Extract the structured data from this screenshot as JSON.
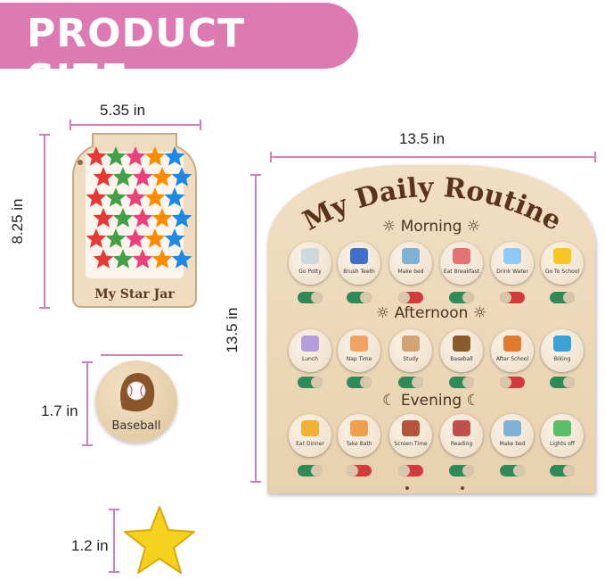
{
  "banner": {
    "title": "PRODUCT SIZE",
    "color": "#de7ab2"
  },
  "dimension_color": "#d77dba",
  "star_jar": {
    "width_label": "5.35 in",
    "height_label": "8.25 in",
    "text": "My Star Jar",
    "star_colors": [
      "#e53935",
      "#fb8c00",
      "#fdd835",
      "#43a047",
      "#1e88e5",
      "#8e24aa",
      "#ec407a",
      "#26c6da"
    ]
  },
  "disc": {
    "height_label": "1.7 in",
    "text": "Baseball"
  },
  "star": {
    "height_label": "1.2 in",
    "color": "#f5d21e"
  },
  "board": {
    "width_label": "13.5 in",
    "height_label": "13.5 in",
    "title": "My Daily Routine",
    "on_color": "#2e8b57",
    "off_color": "#d23b3b",
    "sections": [
      {
        "name": "Morning",
        "icon": "sunrise-icon",
        "items": [
          {
            "label": "Go Potty",
            "icon": "toilet-icon",
            "color": "#cfd8dc",
            "on": true
          },
          {
            "label": "Brush Teeth",
            "icon": "toothbrush-icon",
            "color": "#3f6fc9",
            "on": true
          },
          {
            "label": "Make bed",
            "icon": "bed-icon",
            "color": "#7fb3d5",
            "on": false
          },
          {
            "label": "Eat Breakfast",
            "icon": "toaster-icon",
            "color": "#e57373",
            "on": true
          },
          {
            "label": "Drink Water",
            "icon": "water-bottle-icon",
            "color": "#90caf9",
            "on": false
          },
          {
            "label": "Go To School",
            "icon": "school-bus-icon",
            "color": "#f9c623",
            "on": true
          }
        ]
      },
      {
        "name": "Afternoon",
        "icon": "sun-icon",
        "items": [
          {
            "label": "Lunch",
            "icon": "lunchbox-icon",
            "color": "#b39ddb",
            "on": true
          },
          {
            "label": "Nap Time",
            "icon": "sleeping-child-icon",
            "color": "#f4a261",
            "on": true
          },
          {
            "label": "Study",
            "icon": "desk-icon",
            "color": "#d4a373",
            "on": true
          },
          {
            "label": "Baseball",
            "icon": "baseball-glove-icon",
            "color": "#8d5a2b",
            "on": true
          },
          {
            "label": "After School",
            "icon": "basketball-icon",
            "color": "#e07a2f",
            "on": false
          },
          {
            "label": "Biking",
            "icon": "bicycle-icon",
            "color": "#3aa0d8",
            "on": true
          }
        ]
      },
      {
        "name": "Evening",
        "icon": "moon-icon",
        "items": [
          {
            "label": "Eat Dinner",
            "icon": "dinner-plate-icon",
            "color": "#f2b134",
            "on": true
          },
          {
            "label": "Take Bath",
            "icon": "bathtub-icon",
            "color": "#f0a04b",
            "on": false
          },
          {
            "label": "Screen Time",
            "icon": "computer-icon",
            "color": "#b5533c",
            "on": false
          },
          {
            "label": "Reading",
            "icon": "books-icon",
            "color": "#c0504d",
            "on": true
          },
          {
            "label": "Make bed",
            "icon": "bed-icon",
            "color": "#7fb3d5",
            "on": true
          },
          {
            "label": "Lights off",
            "icon": "lamp-icon",
            "color": "#5bbf6a",
            "on": true
          }
        ]
      }
    ]
  }
}
